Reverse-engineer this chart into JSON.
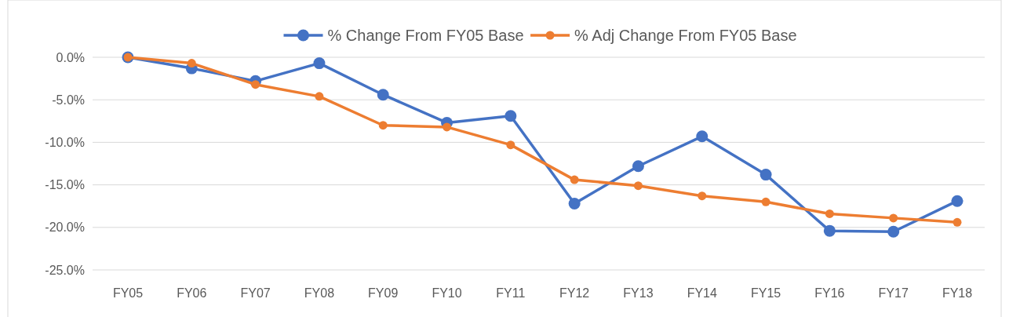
{
  "chart_data": {
    "type": "line",
    "categories": [
      "FY05",
      "FY06",
      "FY07",
      "FY08",
      "FY09",
      "FY10",
      "FY11",
      "FY12",
      "FY13",
      "FY14",
      "FY15",
      "FY16",
      "FY17",
      "FY18"
    ],
    "series": [
      {
        "name": "% Change From FY05 Base",
        "color": "#4472c4",
        "values": [
          0,
          -1.3,
          -2.8,
          -0.7,
          -4.4,
          -7.7,
          -6.9,
          -17.2,
          -12.8,
          -9.3,
          -13.8,
          -20.4,
          -20.5,
          -16.9
        ]
      },
      {
        "name": "% Adj Change From FY05 Base",
        "color": "#ed7d31",
        "values": [
          0,
          -0.7,
          -3.2,
          -4.6,
          -8.0,
          -8.2,
          -10.3,
          -14.4,
          -15.1,
          -16.3,
          -17.0,
          -18.4,
          -18.9,
          -19.4
        ]
      }
    ],
    "ylim": [
      -25,
      0
    ],
    "yticks": [
      {
        "value": 0,
        "label": "0.0%"
      },
      {
        "value": -5,
        "label": "-5.0%"
      },
      {
        "value": -10,
        "label": "-10.0%"
      },
      {
        "value": -15,
        "label": "-15.0%"
      },
      {
        "value": -20,
        "label": "-20.0%"
      },
      {
        "value": -25,
        "label": "-25.0%"
      }
    ],
    "grid": "y",
    "legend": "top",
    "marker": "circle",
    "line_style": "solid"
  }
}
